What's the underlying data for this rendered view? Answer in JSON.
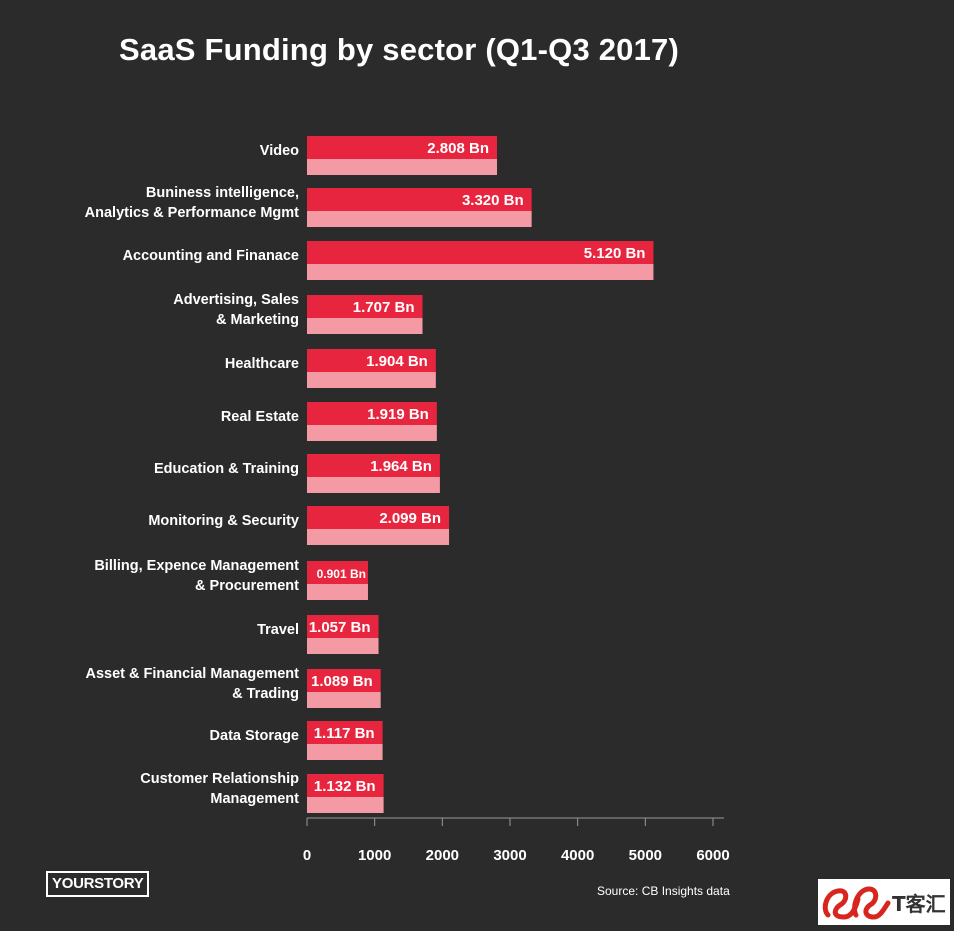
{
  "title": "SaaS Funding by sector (Q1-Q3 2017)",
  "source": "Source: CB Insights data",
  "brand": "YOURSTORY",
  "watermark_text": "T客汇",
  "colors": {
    "background": "#2b2b2b",
    "bar_top": "#e8253f",
    "bar_bottom": "#f39aa4",
    "text": "#ffffff"
  },
  "chart_data": {
    "type": "bar",
    "orientation": "horizontal",
    "title": "SaaS Funding by sector (Q1-Q3 2017)",
    "categories": [
      [
        "Video"
      ],
      [
        "Buniness intelligence,",
        "Analytics & Performance Mgmt"
      ],
      [
        "Accounting and Finanace"
      ],
      [
        "Advertising, Sales",
        "& Marketing"
      ],
      [
        "Healthcare"
      ],
      [
        "Real Estate"
      ],
      [
        "Education & Training"
      ],
      [
        "Monitoring & Security"
      ],
      [
        "Billing, Expence Management",
        "& Procurement"
      ],
      [
        "Travel"
      ],
      [
        "Asset & Financial Management",
        "& Trading"
      ],
      [
        "Data Storage"
      ],
      [
        "Customer Relationship",
        "Management"
      ]
    ],
    "values": [
      2808,
      3320,
      5120,
      1707,
      1904,
      1919,
      1964,
      2099,
      901,
      1057,
      1089,
      1117,
      1132
    ],
    "value_labels": [
      "2.808 Bn",
      "3.320 Bn",
      "5.120 Bn",
      "1.707 Bn",
      "1.904 Bn",
      "1.919 Bn",
      "1.964 Bn",
      "2.099 Bn",
      "0.901 Bn",
      "1.057 Bn",
      "1.089 Bn",
      "1.117 Bn",
      "1.132 Bn"
    ],
    "xlim": [
      0,
      6000
    ],
    "xticks": [
      0,
      1000,
      2000,
      3000,
      4000,
      5000,
      6000
    ],
    "grid": false,
    "legend": "none"
  }
}
